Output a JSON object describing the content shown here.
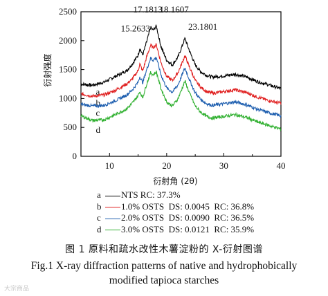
{
  "chart_data": {
    "type": "line",
    "xlabel": "衍射角 (2θ)",
    "ylabel": "衍射强度",
    "xlim": [
      5,
      40
    ],
    "ylim": [
      0,
      2500
    ],
    "xticks": [
      10,
      20,
      30,
      40
    ],
    "yticks": [
      0,
      500,
      1000,
      1500,
      2000,
      2500
    ],
    "grid": false,
    "series": [
      {
        "name": "NTS RC: 37.3%",
        "letter": "a",
        "color": "#000000",
        "x": [
          5,
          7,
          9,
          11,
          13,
          14,
          15,
          15.3,
          15.8,
          16.5,
          17.2,
          17.6,
          18.2,
          19,
          20,
          21,
          22,
          23.2,
          24,
          25,
          26,
          27,
          28,
          30,
          32,
          34,
          36,
          38,
          40
        ],
        "values": [
          1250,
          1230,
          1280,
          1380,
          1480,
          1600,
          1750,
          1870,
          1750,
          1980,
          2230,
          2180,
          2250,
          1900,
          1660,
          1580,
          1720,
          2040,
          1820,
          1580,
          1460,
          1400,
          1370,
          1390,
          1420,
          1370,
          1290,
          1230,
          1170
        ]
      },
      {
        "name": "1.0% OSTS  DS: 0.0045  RC: 36.8%",
        "letter": "b",
        "color": "#e02020",
        "x": [
          5,
          7,
          9,
          11,
          13,
          14,
          15,
          15.3,
          15.8,
          16.5,
          17.2,
          17.6,
          18.2,
          19,
          20,
          21,
          22,
          23.2,
          24,
          25,
          26,
          27,
          28,
          30,
          32,
          34,
          36,
          38,
          40
        ],
        "values": [
          1080,
          1040,
          1060,
          1140,
          1250,
          1340,
          1480,
          1600,
          1470,
          1720,
          1920,
          1880,
          1930,
          1620,
          1380,
          1310,
          1450,
          1740,
          1540,
          1310,
          1190,
          1120,
          1090,
          1120,
          1150,
          1100,
          1020,
          960,
          920
        ]
      },
      {
        "name": "2.0% OSTS  DS: 0.0090  RC: 36.5%",
        "letter": "c",
        "color": "#2060b0",
        "x": [
          5,
          7,
          9,
          11,
          13,
          14,
          15,
          15.3,
          15.8,
          16.5,
          17.2,
          17.6,
          18.2,
          19,
          20,
          21,
          22,
          23.2,
          24,
          25,
          26,
          27,
          28,
          30,
          32,
          34,
          36,
          38,
          40
        ],
        "values": [
          900,
          870,
          880,
          960,
          1060,
          1150,
          1280,
          1380,
          1270,
          1500,
          1700,
          1660,
          1710,
          1410,
          1180,
          1110,
          1240,
          1530,
          1320,
          1100,
          980,
          910,
          880,
          910,
          940,
          890,
          810,
          750,
          700
        ]
      },
      {
        "name": "3.0% OSTS  DS: 0.0121  RC: 35.9%",
        "letter": "d",
        "color": "#30b030",
        "x": [
          5,
          7,
          9,
          11,
          13,
          14,
          15,
          15.3,
          15.8,
          16.5,
          17.2,
          17.6,
          18.2,
          19,
          20,
          21,
          22,
          23.2,
          24,
          25,
          26,
          27,
          28,
          30,
          32,
          34,
          36,
          38,
          40
        ],
        "values": [
          700,
          620,
          630,
          720,
          820,
          920,
          1050,
          1120,
          1010,
          1250,
          1450,
          1410,
          1460,
          1170,
          940,
          870,
          1000,
          1300,
          1090,
          870,
          760,
          690,
          660,
          690,
          720,
          670,
          590,
          530,
          470
        ]
      }
    ],
    "annotations": [
      {
        "text": "15.2633",
        "x": 15.2633,
        "y": 2230
      },
      {
        "text": "17.1813",
        "x": 17.1813,
        "y": 2560
      },
      {
        "text": "18.1607",
        "x": 18.1607,
        "y": 2560
      },
      {
        "text": "23.1801",
        "x": 23.1801,
        "y": 2260
      }
    ]
  },
  "legend": [
    {
      "letter": "a",
      "label": "NTS RC: 37.3%",
      "color": "#000000"
    },
    {
      "letter": "b",
      "label": "1.0% OSTS  DS: 0.0045  RC: 36.8%",
      "color": "#e02020"
    },
    {
      "letter": "c",
      "label": "2.0% OSTS  DS: 0.0090  RC: 36.5%",
      "color": "#2060b0"
    },
    {
      "letter": "d",
      "label": "3.0% OSTS  DS: 0.0121  RC: 35.9%",
      "color": "#30b030"
    }
  ],
  "caption": {
    "cn": "图 1    原料和疏水改性木薯淀粉的 X-衍射图谱",
    "en_line1": "Fig.1    X-ray diffraction patterns of native and hydrophobically",
    "en_line2": "modified tapioca starches"
  },
  "watermark": "大宗商品"
}
